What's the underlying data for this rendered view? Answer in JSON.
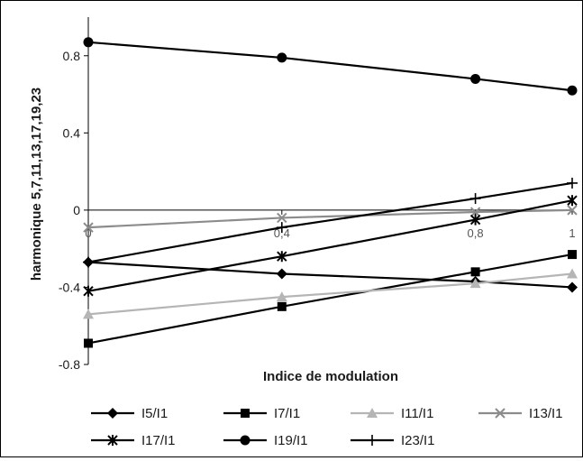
{
  "chart_data": {
    "type": "line",
    "xlabel": "Indice de modulation",
    "ylabel": "harmonique 5,7,11,13,17,19,23",
    "x": [
      0,
      0.4,
      0.8,
      1
    ],
    "x_tick_labels": [
      "0",
      "0,4",
      "0,8",
      "1"
    ],
    "ylim": [
      -0.8,
      1.0
    ],
    "y_ticks": [
      -0.8,
      -0.4,
      0,
      0.4,
      0.8
    ],
    "y_tick_labels": [
      "-0.8",
      "-0.4",
      "0",
      "0.4",
      "0.8"
    ],
    "grid": false,
    "legend_position": "bottom",
    "series": [
      {
        "name": "I5/I1",
        "marker": "diamond",
        "color": "#000000",
        "values": [
          -0.27,
          -0.33,
          -0.37,
          -0.4
        ]
      },
      {
        "name": "I7/I1",
        "marker": "square",
        "color": "#000000",
        "values": [
          -0.69,
          -0.5,
          -0.32,
          -0.23
        ]
      },
      {
        "name": "I11/I1",
        "marker": "triangle",
        "color": "#b5b5b5",
        "values": [
          -0.54,
          -0.45,
          -0.38,
          -0.33
        ]
      },
      {
        "name": "I13/I1",
        "marker": "x",
        "color": "#8c8c8c",
        "values": [
          -0.09,
          -0.04,
          -0.01,
          0.0
        ]
      },
      {
        "name": "I17/I1",
        "marker": "star",
        "color": "#000000",
        "values": [
          -0.42,
          -0.24,
          -0.05,
          0.05
        ]
      },
      {
        "name": "I19/I1",
        "marker": "circle",
        "color": "#000000",
        "values": [
          0.87,
          0.79,
          0.68,
          0.62
        ]
      },
      {
        "name": "I23/I1",
        "marker": "plus",
        "color": "#000000",
        "values": [
          -0.27,
          -0.09,
          0.06,
          0.14
        ]
      }
    ]
  }
}
